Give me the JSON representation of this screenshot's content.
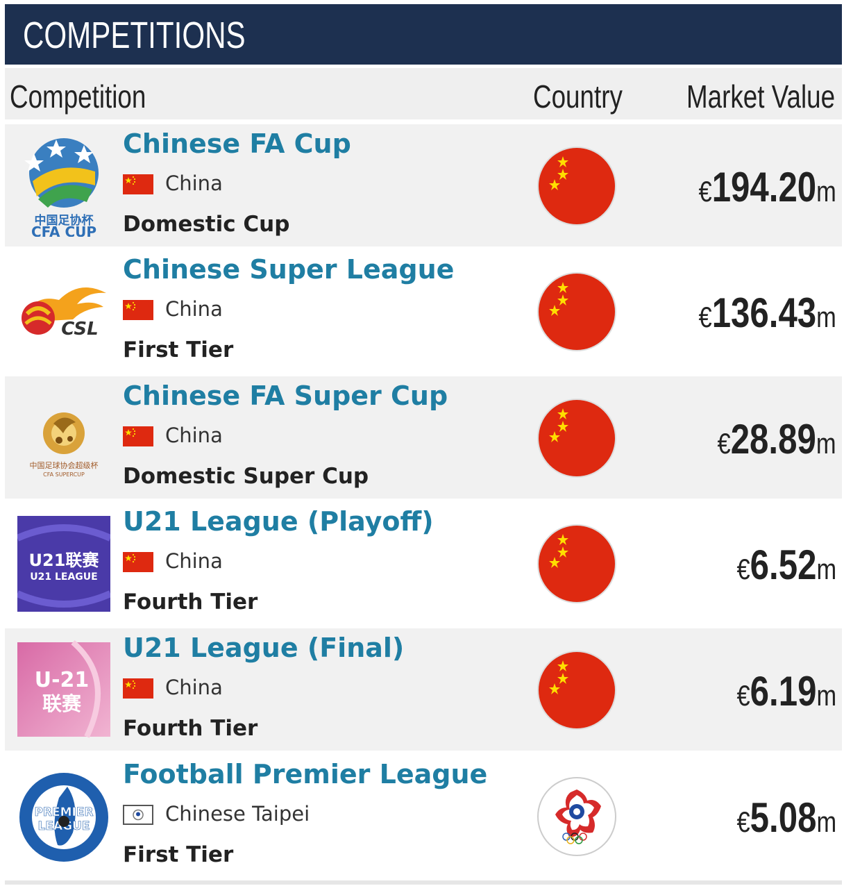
{
  "header": {
    "title": "COMPETITIONS"
  },
  "columns": {
    "competition": "Competition",
    "country": "Country",
    "market_value": "Market Value"
  },
  "colors": {
    "header_bg": "#1d3050",
    "link": "#1f7ea3",
    "china_red": "#de2910",
    "star_yellow": "#ffde00"
  },
  "rows": [
    {
      "name": "Chinese FA Cup",
      "country": "China",
      "tier": "Domestic Cup",
      "currency": "€",
      "value": "194.20",
      "unit": "m",
      "logo_icon": "cfa-cup-logo-icon",
      "logo_text_1": "中国足协杯",
      "logo_text_2": "CFA CUP"
    },
    {
      "name": "Chinese Super League",
      "country": "China",
      "tier": "First Tier",
      "currency": "€",
      "value": "136.43",
      "unit": "m",
      "logo_icon": "csl-logo-icon",
      "logo_text_1": "CSL"
    },
    {
      "name": "Chinese FA Super Cup",
      "country": "China",
      "tier": "Domestic Super Cup",
      "currency": "€",
      "value": "28.89",
      "unit": "m",
      "logo_icon": "cfa-super-cup-logo-icon",
      "logo_text_1": "中国足球协会超级杯",
      "logo_text_2": "CFA SUPERCUP"
    },
    {
      "name": "U21 League (Playoff)",
      "country": "China",
      "tier": "Fourth Tier",
      "currency": "€",
      "value": "6.52",
      "unit": "m",
      "logo_icon": "u21-league-logo-icon",
      "logo_text_1": "U21联赛",
      "logo_text_2": "U21 LEAGUE"
    },
    {
      "name": "U21 League (Final)",
      "country": "China",
      "tier": "Fourth Tier",
      "currency": "€",
      "value": "6.19",
      "unit": "m",
      "logo_icon": "u21-final-logo-icon",
      "logo_text_1": "U-21",
      "logo_text_2": "联赛"
    },
    {
      "name": "Football Premier League",
      "country": "Chinese Taipei",
      "tier": "First Tier",
      "currency": "€",
      "value": "5.08",
      "unit": "m",
      "logo_icon": "taiwan-premier-league-logo-icon",
      "logo_text_1": "PREMIER",
      "logo_text_2": "LEAGUE"
    }
  ]
}
